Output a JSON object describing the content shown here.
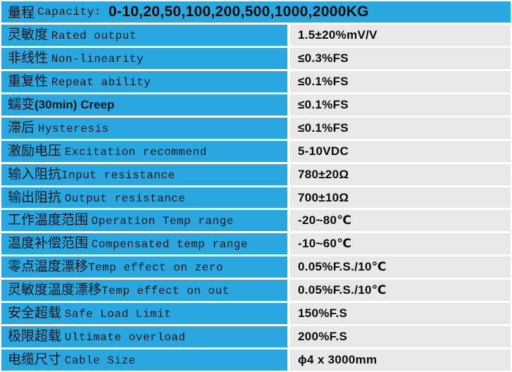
{
  "colors": {
    "accent_blue": "#29a7df",
    "value_cell_bg": "#e8e8e8",
    "divider_white": "#ffffff",
    "label_text": "#10141c",
    "value_text": "#0a0a0a"
  },
  "header": {
    "label_zh": "量程",
    "label_en": "Capacity: ",
    "value": "0-10,20,50,100,200,500,1000,2000KG"
  },
  "rows": [
    {
      "zh": "灵敏度 ",
      "en": "Rated output",
      "value": "1.5±20%mV/V"
    },
    {
      "zh": "非线性 ",
      "en": "Non-linearity",
      "value": "≤0.3%FS"
    },
    {
      "zh": "重复性 ",
      "en": "Repeat ability",
      "value": "≤0.1%FS"
    },
    {
      "zh": "蠕变",
      "en": "(30min) Creep",
      "en_style": "sans",
      "value": "≤0.1%FS"
    },
    {
      "zh": "滞后 ",
      "en": "Hysteresis",
      "value": "≤0.1%FS"
    },
    {
      "zh": "激励电压 ",
      "en": "Excitation recommend",
      "value": "5-10VDC"
    },
    {
      "zh": "输入阻抗",
      "en": "Input resistance",
      "value": "780±20Ω"
    },
    {
      "zh": "输出阻抗 ",
      "en": "Output resistance",
      "value": "700±10Ω"
    },
    {
      "zh": "工作温度范围 ",
      "en": "Operation Temp range",
      "value": "-20~80℃"
    },
    {
      "zh": "温度补偿范围 ",
      "en": "Compensated temp range",
      "value": "-10~60℃"
    },
    {
      "zh": "零点温度漂移",
      "en": "Temp effect on zero",
      "value": "0.05%F.S./10℃"
    },
    {
      "zh": "灵敏度温度漂移",
      "en": "Temp effect on out",
      "value": "0.05%F.S./10℃"
    },
    {
      "zh": "安全超载 ",
      "en": "Safe Load Limit",
      "value": "150%F.S"
    },
    {
      "zh": "极限超载 ",
      "en": "Ultimate overload",
      "value": "200%F.S"
    },
    {
      "zh": "电缆尺寸 ",
      "en": "Cable Size",
      "value": "ϕ4 x 3000mm"
    }
  ]
}
